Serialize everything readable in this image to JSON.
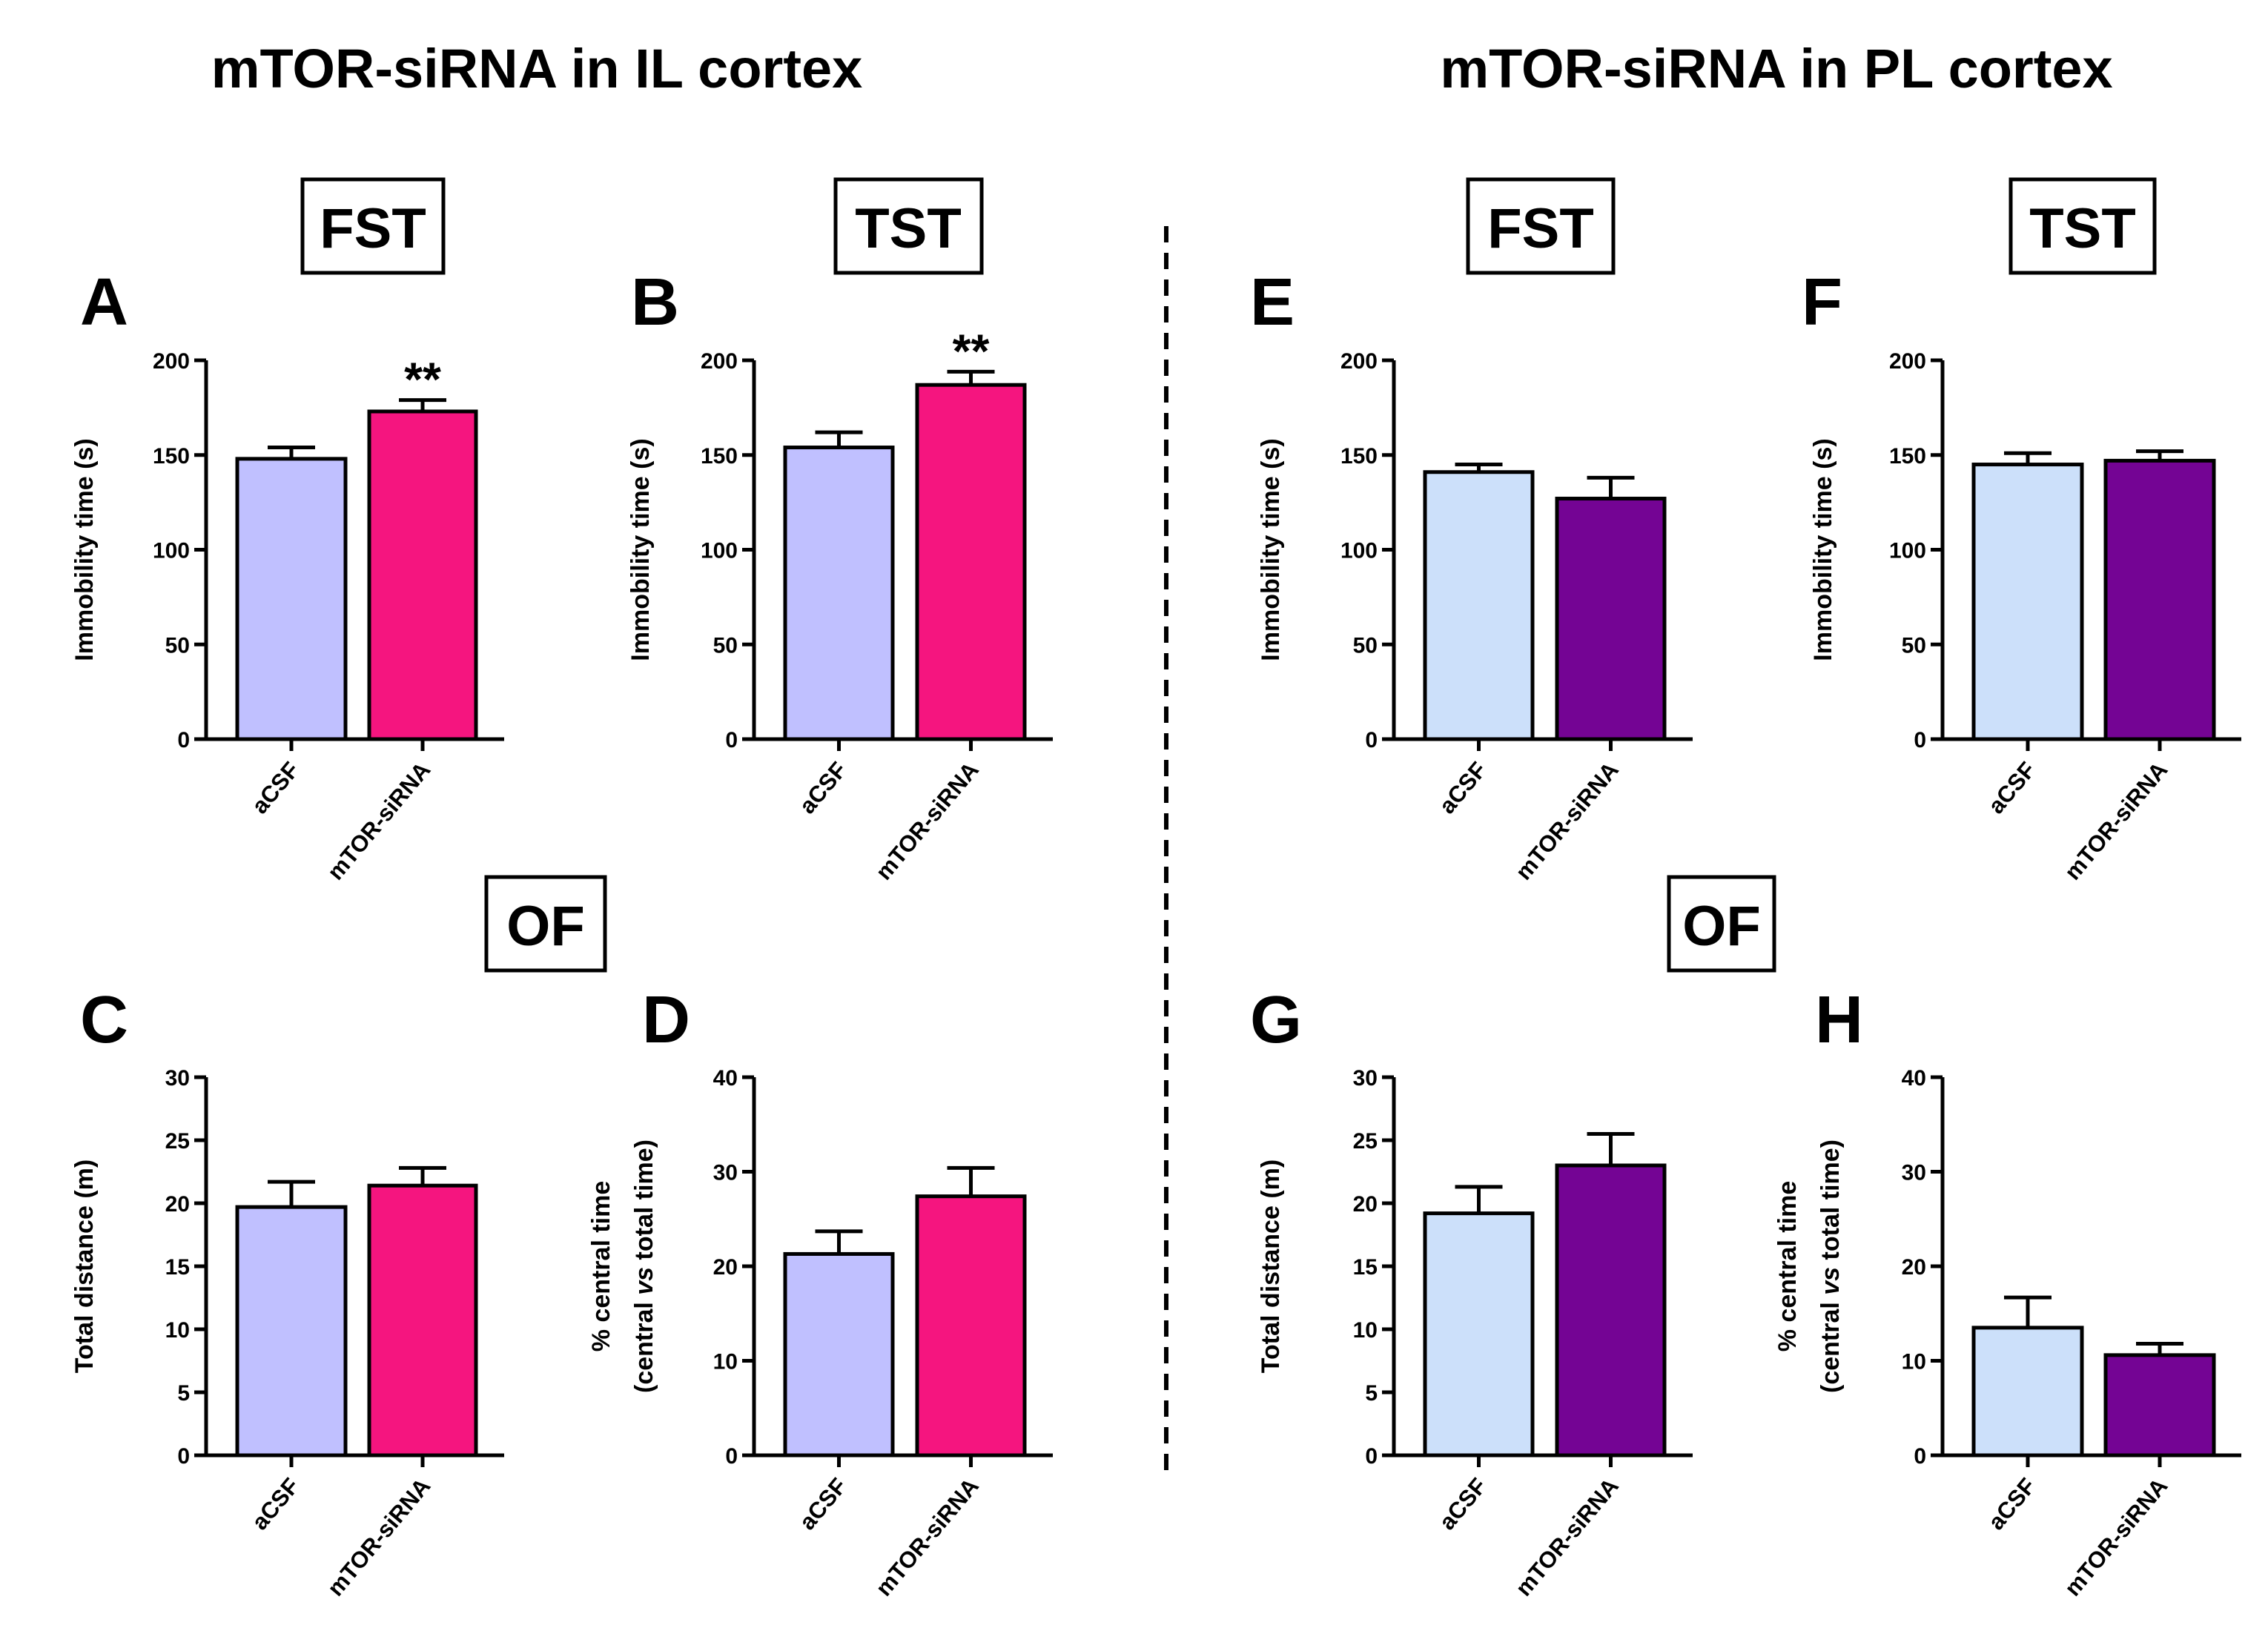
{
  "titles": {
    "il": "mTOR-siRNA in IL cortex",
    "pl": "mTOR-siRNA in PL cortex"
  },
  "test_boxes": {
    "fst": "FST",
    "tst": "TST",
    "of": "OF"
  },
  "colors": {
    "il_acsf": "#C0C0FF",
    "il_sirna": "#F5157F",
    "pl_acsf": "#CCE0FA",
    "pl_sirna": "#740494"
  },
  "chart_data": [
    {
      "panel": "A",
      "type": "bar",
      "test": "FST",
      "region": "IL cortex",
      "categories": [
        "aCSF",
        "mTOR-siRNA"
      ],
      "values": [
        148,
        173
      ],
      "errors": [
        6,
        6
      ],
      "significance": [
        "",
        "**"
      ],
      "ylabel": "Immobility time (s)",
      "ylim": [
        0,
        200
      ],
      "yticks": [
        "0",
        "50",
        "100",
        "150",
        "200"
      ]
    },
    {
      "panel": "B",
      "type": "bar",
      "test": "TST",
      "region": "IL cortex",
      "categories": [
        "aCSF",
        "mTOR-siRNA"
      ],
      "values": [
        154,
        187
      ],
      "errors": [
        8,
        7
      ],
      "significance": [
        "",
        "**"
      ],
      "ylabel": "Immobility time (s)",
      "ylim": [
        0,
        200
      ],
      "yticks": [
        "0",
        "50",
        "100",
        "150",
        "200"
      ]
    },
    {
      "panel": "C",
      "type": "bar",
      "test": "OF",
      "region": "IL cortex",
      "categories": [
        "aCSF",
        "mTOR-siRNA"
      ],
      "values": [
        19.7,
        21.4
      ],
      "errors": [
        2.0,
        1.4
      ],
      "significance": [
        "",
        ""
      ],
      "ylabel": "Total distance (m)",
      "ylim": [
        0,
        30
      ],
      "yticks": [
        "0",
        "5",
        "10",
        "15",
        "20",
        "25",
        "30"
      ]
    },
    {
      "panel": "D",
      "type": "bar",
      "test": "OF",
      "region": "IL cortex",
      "categories": [
        "aCSF",
        "mTOR-siRNA"
      ],
      "values": [
        21.3,
        27.4
      ],
      "errors": [
        2.4,
        3.0
      ],
      "significance": [
        "",
        ""
      ],
      "ylabel": "% central time",
      "ylabel2_prefix": "(central ",
      "ylabel2_italic": "vs",
      "ylabel2_suffix": " total time)",
      "ylim": [
        0,
        40
      ],
      "yticks": [
        "0",
        "10",
        "20",
        "30",
        "40"
      ]
    },
    {
      "panel": "E",
      "type": "bar",
      "test": "FST",
      "region": "PL cortex",
      "categories": [
        "aCSF",
        "mTOR-siRNA"
      ],
      "values": [
        141,
        127
      ],
      "errors": [
        4,
        11
      ],
      "significance": [
        "",
        ""
      ],
      "ylabel": "Immobility time (s)",
      "ylim": [
        0,
        200
      ],
      "yticks": [
        "0",
        "50",
        "100",
        "150",
        "200"
      ]
    },
    {
      "panel": "F",
      "type": "bar",
      "test": "TST",
      "region": "PL cortex",
      "categories": [
        "aCSF",
        "mTOR-siRNA"
      ],
      "values": [
        145,
        147
      ],
      "errors": [
        6,
        5
      ],
      "significance": [
        "",
        ""
      ],
      "ylabel": "Immobility time (s)",
      "ylim": [
        0,
        200
      ],
      "yticks": [
        "0",
        "50",
        "100",
        "150",
        "200"
      ]
    },
    {
      "panel": "G",
      "type": "bar",
      "test": "OF",
      "region": "PL cortex",
      "categories": [
        "aCSF",
        "mTOR-siRNA"
      ],
      "values": [
        19.2,
        23.0
      ],
      "errors": [
        2.1,
        2.5
      ],
      "significance": [
        "",
        ""
      ],
      "ylabel": "Total distance (m)",
      "ylim": [
        0,
        30
      ],
      "yticks": [
        "0",
        "5",
        "10",
        "15",
        "20",
        "25",
        "30"
      ]
    },
    {
      "panel": "H",
      "type": "bar",
      "test": "OF",
      "region": "PL cortex",
      "categories": [
        "aCSF",
        "mTOR-siRNA"
      ],
      "values": [
        13.5,
        10.6
      ],
      "errors": [
        3.2,
        1.2
      ],
      "significance": [
        "",
        ""
      ],
      "ylabel": "% central time",
      "ylabel2_prefix": "(central ",
      "ylabel2_italic": "vs",
      "ylabel2_suffix": " total time)",
      "ylim": [
        0,
        40
      ],
      "yticks": [
        "0",
        "10",
        "20",
        "30",
        "40"
      ]
    }
  ]
}
